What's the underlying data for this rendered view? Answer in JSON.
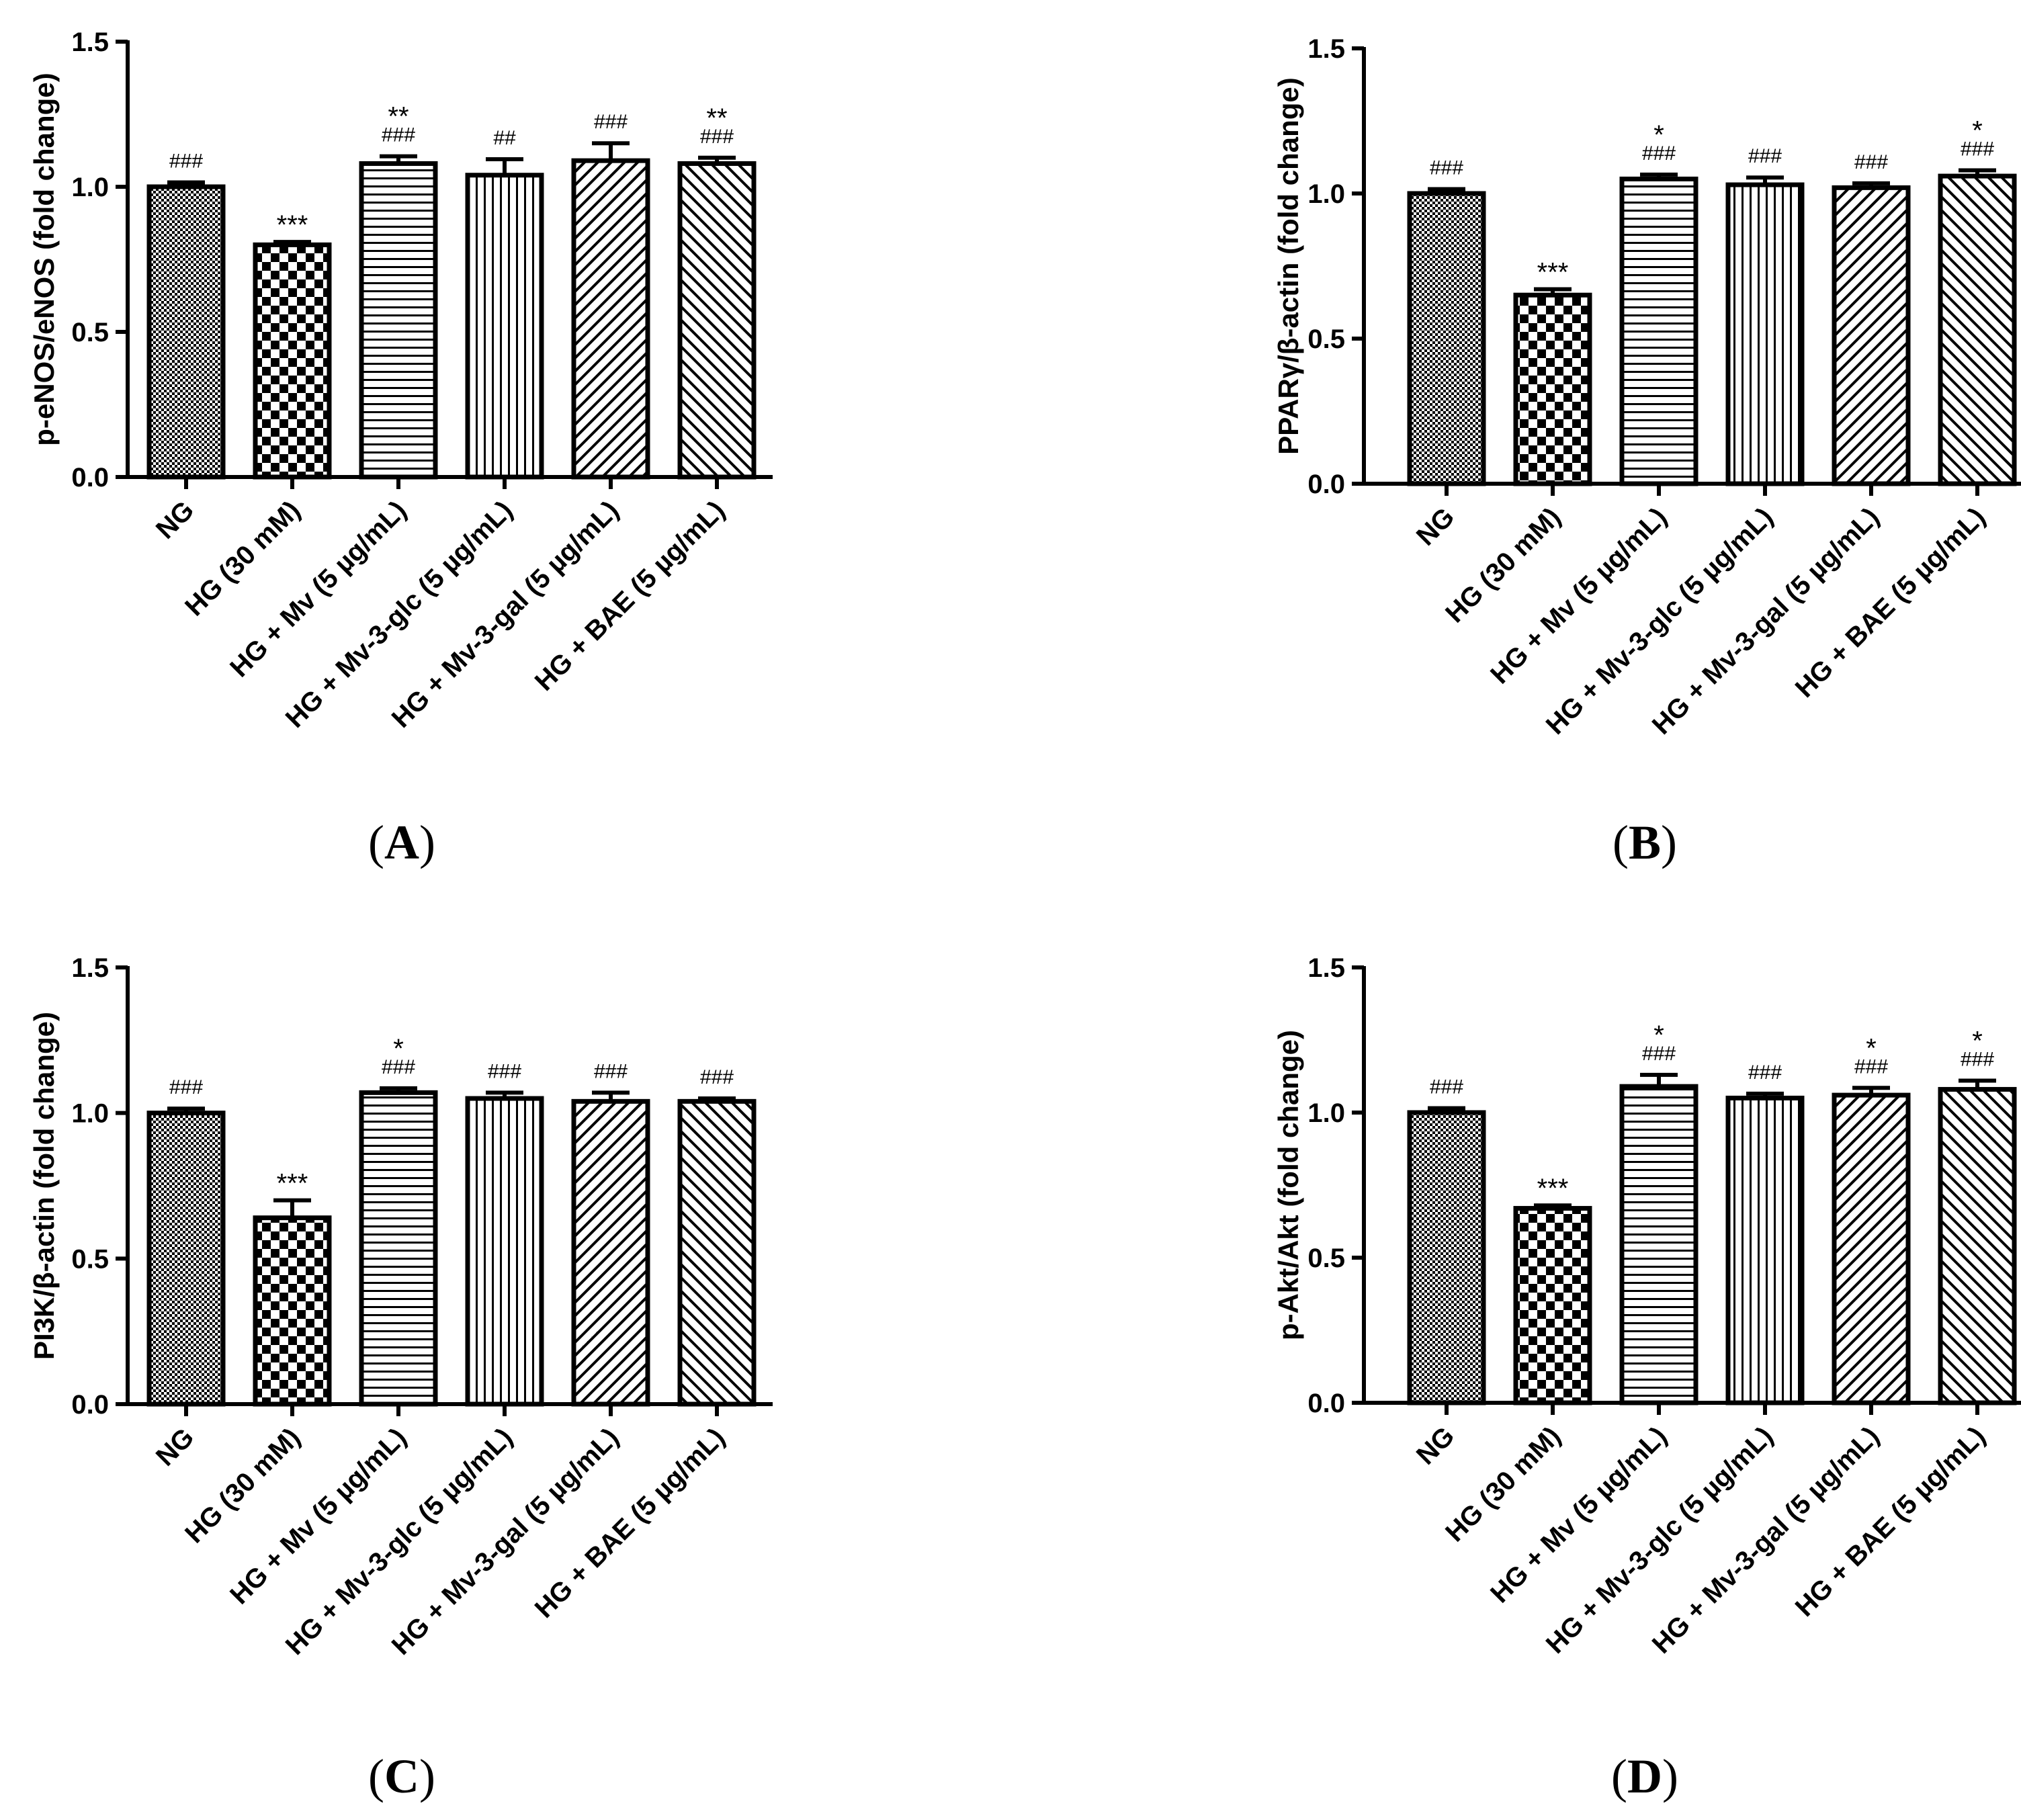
{
  "chart_data": [
    {
      "type": "bar",
      "panel_label": "A",
      "ylabel": "p-eNOS/eNOS (fold change)",
      "ylim": [
        0,
        1.5
      ],
      "yticks": [
        "0.0",
        "0.5",
        "1.0",
        "1.5"
      ],
      "categories": [
        "NG",
        "HG (30 mM)",
        "HG + Mv (5 µg/mL)",
        "HG + Mv-3-glc (5 µg/mL)",
        "HG + Mv-3-gal (5 µg/mL)",
        "HG + BAE (5 µg/mL)"
      ],
      "values": [
        1.0,
        0.8,
        1.08,
        1.04,
        1.09,
        1.08
      ],
      "errors": [
        0.015,
        0.01,
        0.025,
        0.055,
        0.06,
        0.02
      ],
      "sig_star": [
        "",
        "***",
        "**",
        "",
        "",
        "**"
      ],
      "sig_hash": [
        "###",
        "",
        "###",
        "##",
        "###",
        "###"
      ]
    },
    {
      "type": "bar",
      "panel_label": "B",
      "ylabel": "PPARγ/β-actin (fold change)",
      "ylim": [
        0,
        1.5
      ],
      "yticks": [
        "0.0",
        "0.5",
        "1.0",
        "1.5"
      ],
      "categories": [
        "NG",
        "HG (30 mM)",
        "HG + Mv (5 µg/mL)",
        "HG + Mv-3-glc (5 µg/mL)",
        "HG + Mv-3-gal (5 µg/mL)",
        "HG + BAE (5 µg/mL)"
      ],
      "values": [
        1.0,
        0.65,
        1.05,
        1.03,
        1.02,
        1.06
      ],
      "errors": [
        0.015,
        0.02,
        0.015,
        0.025,
        0.015,
        0.02
      ],
      "sig_star": [
        "",
        "***",
        "*",
        "",
        "",
        "*"
      ],
      "sig_hash": [
        "###",
        "",
        "###",
        "###",
        "###",
        "###"
      ]
    },
    {
      "type": "bar",
      "panel_label": "C",
      "ylabel": "PI3K/β-actin (fold change)",
      "ylim": [
        0,
        1.5
      ],
      "yticks": [
        "0.0",
        "0.5",
        "1.0",
        "1.5"
      ],
      "categories": [
        "NG",
        "HG (30 mM)",
        "HG + Mv (5 µg/mL)",
        "HG + Mv-3-glc (5 µg/mL)",
        "HG + Mv-3-gal (5 µg/mL)",
        "HG + BAE (5 µg/mL)"
      ],
      "values": [
        1.0,
        0.64,
        1.07,
        1.05,
        1.04,
        1.04
      ],
      "errors": [
        0.015,
        0.06,
        0.015,
        0.02,
        0.03,
        0.01
      ],
      "sig_star": [
        "",
        "***",
        "*",
        "",
        "",
        ""
      ],
      "sig_hash": [
        "###",
        "",
        "###",
        "###",
        "###",
        "###"
      ]
    },
    {
      "type": "bar",
      "panel_label": "D",
      "ylabel": "p-Akt/Akt (fold change)",
      "ylim": [
        0,
        1.5
      ],
      "yticks": [
        "0.0",
        "0.5",
        "1.0",
        "1.5"
      ],
      "categories": [
        "NG",
        "HG (30 mM)",
        "HG + Mv (5 µg/mL)",
        "HG + Mv-3-glc (5 µg/mL)",
        "HG + Mv-3-gal (5 µg/mL)",
        "HG + BAE (5 µg/mL)"
      ],
      "values": [
        1.0,
        0.67,
        1.09,
        1.05,
        1.06,
        1.08
      ],
      "errors": [
        0.015,
        0.01,
        0.04,
        0.015,
        0.025,
        0.03
      ],
      "sig_star": [
        "",
        "***",
        "*",
        "",
        "*",
        "*"
      ],
      "sig_hash": [
        "###",
        "",
        "###",
        "###",
        "###",
        "###"
      ]
    }
  ]
}
